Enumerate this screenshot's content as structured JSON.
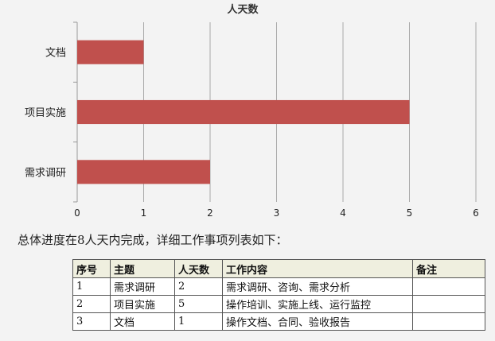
{
  "chart_data": {
    "type": "bar",
    "orientation": "horizontal",
    "title": "人天数",
    "categories": [
      "文档",
      "项目实施",
      "需求调研"
    ],
    "values": [
      1,
      5,
      2
    ],
    "xlim": [
      0,
      6
    ],
    "xticks": [
      "0",
      "1",
      "2",
      "3",
      "4",
      "5",
      "6"
    ],
    "grid": true,
    "legend": "none",
    "bar_color": "#c0504d"
  },
  "summary": "总体进度在8人天内完成，详细工作事项列表如下：",
  "table": {
    "headers": [
      "序号",
      "主题",
      "人天数",
      "工作内容",
      "备注"
    ],
    "rows": [
      [
        "1",
        "需求调研",
        "2",
        "需求调研、咨询、需求分析",
        ""
      ],
      [
        "2",
        "项目实施",
        "5",
        "操作培训、实施上线、运行监控",
        ""
      ],
      [
        "3",
        "文档",
        "1",
        "操作文档、合同、验收报告",
        ""
      ]
    ]
  }
}
